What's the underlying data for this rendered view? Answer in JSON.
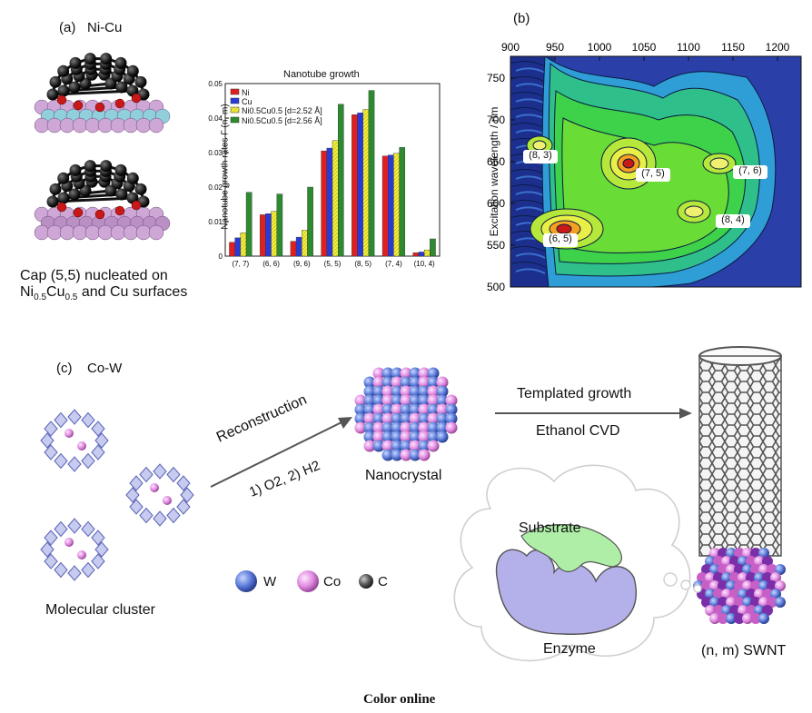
{
  "panel_a": {
    "tag": "(a)",
    "system": "Ni-Cu",
    "caption_line1": "Cap (5,5) nucleated on",
    "caption_ni": "Ni",
    "caption_sub1": "0.5",
    "caption_cu": "Cu",
    "caption_sub2": "0.5",
    "caption_rest": " and Cu surfaces"
  },
  "panel_b": {
    "tag": "(b)",
    "ylabel": "Excitation wavelength / nm",
    "x_ticks": [
      "900",
      "950",
      "1000",
      "1050",
      "1100",
      "1150",
      "1200"
    ],
    "y_ticks": [
      "750",
      "700",
      "650",
      "600",
      "550",
      "500"
    ],
    "peak_labels": [
      "(8, 3)",
      "(7, 5)",
      "(7, 6)",
      "(8, 4)",
      "(6, 5)"
    ]
  },
  "panel_c": {
    "tag": "(c)",
    "system": "Co-W",
    "reconstruction": "Reconstruction",
    "conditions": "1) O2, 2) H2",
    "nanocrystal": "Nanocrystal",
    "templated_growth": "Templated growth",
    "ethanol_cvd": "Ethanol CVD",
    "molecular_cluster": "Molecular cluster",
    "substrate": "Substrate",
    "enzyme": "Enzyme",
    "swnt": "(n, m) SWNT",
    "legend": [
      "W",
      "Co",
      "C"
    ]
  },
  "footer": {
    "caption": "Color online"
  },
  "colors": {
    "ni": "#e02020",
    "cu": "#2a3ad8",
    "ni_cu_252": "#f2f040",
    "ni_cu_256": "#2e8a2e"
  },
  "chart_data": {
    "type": "bar",
    "title": "Nanotube growth",
    "ylabel": "Nanotube growth rates Γ (n, m)",
    "xlabel": "",
    "categories": [
      "(7, 7)",
      "(6, 6)",
      "(9, 6)",
      "(5, 5)",
      "(8, 5)",
      "(7, 4)",
      "(10, 4)"
    ],
    "ylim": [
      0,
      0.05
    ],
    "y_ticks": [
      0,
      0.01,
      0.02,
      0.03,
      0.04,
      0.05
    ],
    "series": [
      {
        "name": "Ni",
        "values": [
          0.004,
          0.012,
          0.0043,
          0.0305,
          0.041,
          0.029,
          0.001
        ]
      },
      {
        "name": "Cu",
        "values": [
          0.0053,
          0.0123,
          0.0055,
          0.0313,
          0.0415,
          0.0293,
          0.0012
        ]
      },
      {
        "name": "Ni0.5Cu0.5 [d=2.52 Å]",
        "values": [
          0.0068,
          0.013,
          0.0075,
          0.0335,
          0.0425,
          0.0298,
          0.0018
        ]
      },
      {
        "name": "Ni0.5Cu0.5 [d=2.56 Å]",
        "values": [
          0.0185,
          0.018,
          0.02,
          0.044,
          0.048,
          0.0315,
          0.005
        ]
      }
    ],
    "legend_position": "top-left"
  }
}
